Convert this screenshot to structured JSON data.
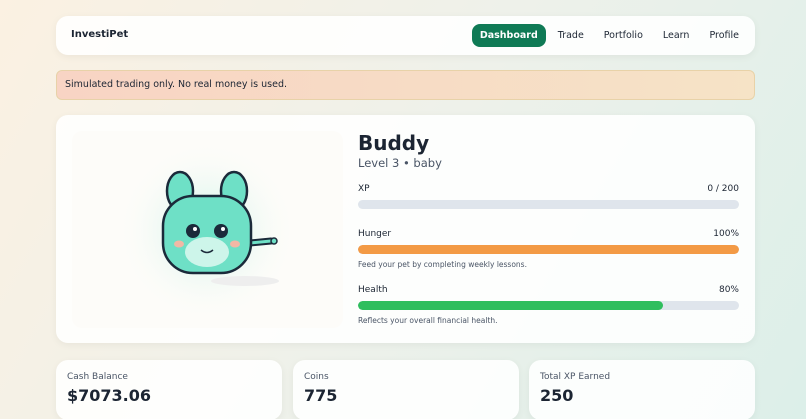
{
  "header": {
    "brand": "InvestiPet",
    "nav": [
      "Dashboard",
      "Trade",
      "Portfolio",
      "Learn",
      "Profile"
    ],
    "active": 0
  },
  "notice": "Simulated trading only. No real money is used.",
  "pet": {
    "name": "Buddy",
    "level": "Level 3 • baby",
    "stats": [
      {
        "label": "XP",
        "value": 0,
        "value_label": "0 / 200",
        "xlim": [
          0,
          200
        ],
        "color": "#dfe5ec"
      },
      {
        "label": "Hunger",
        "value": 100,
        "value_label": "100%",
        "xlim": [
          0,
          100
        ],
        "color": "#f39a45",
        "note": "Feed your pet by completing weekly lessons."
      },
      {
        "label": "Health",
        "value": 80,
        "value_label": "80%",
        "xlim": [
          0,
          100
        ],
        "color": "#2fbe5e",
        "note": "Reflects your overall financial health."
      }
    ]
  },
  "cards": [
    {
      "label": "Cash Balance",
      "value": "$7073.06"
    },
    {
      "label": "Coins",
      "value": 775
    },
    {
      "label": "Total XP Earned",
      "value": 250
    }
  ]
}
